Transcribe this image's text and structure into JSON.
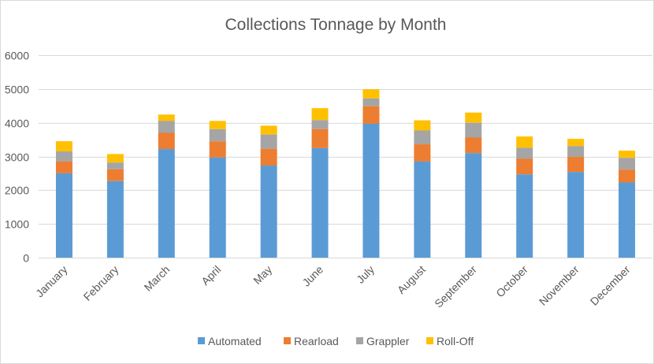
{
  "chart_data": {
    "type": "bar",
    "stacked": true,
    "title": "Collections Tonnage by Month",
    "xlabel": "",
    "ylabel": "",
    "ylim": [
      0,
      6000
    ],
    "yticks": [
      0,
      1000,
      2000,
      3000,
      4000,
      5000,
      6000
    ],
    "grid": true,
    "legend": "bottom",
    "categories": [
      "January",
      "February",
      "March",
      "April",
      "May",
      "June",
      "July",
      "August",
      "September",
      "October",
      "November",
      "December"
    ],
    "series": [
      {
        "name": "Automated",
        "color": "#5b9bd5",
        "values": [
          2500,
          2270,
          3220,
          2970,
          2730,
          3250,
          3970,
          2850,
          3100,
          2470,
          2540,
          2230
        ]
      },
      {
        "name": "Rearload",
        "color": "#ed7d31",
        "values": [
          350,
          350,
          480,
          480,
          500,
          560,
          520,
          510,
          460,
          460,
          450,
          380
        ]
      },
      {
        "name": "Grappler",
        "color": "#a5a5a5",
        "values": [
          300,
          200,
          350,
          360,
          420,
          270,
          230,
          410,
          440,
          330,
          320,
          350
        ]
      },
      {
        "name": "Roll-Off",
        "color": "#ffc000",
        "values": [
          300,
          250,
          190,
          240,
          260,
          350,
          270,
          300,
          300,
          330,
          210,
          210
        ]
      }
    ]
  }
}
